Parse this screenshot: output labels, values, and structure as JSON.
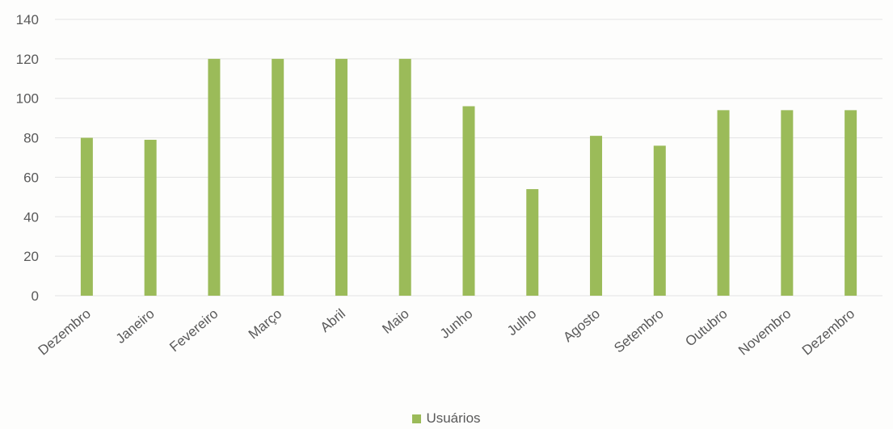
{
  "colors": {
    "bar": "#9bbb59",
    "grid": "#e3e3e3",
    "text": "#595959"
  },
  "chart_data": {
    "type": "bar",
    "categories": [
      "Dezembro",
      "Janeiro",
      "Fevereiro",
      "Março",
      "Abril",
      "Maio",
      "Junho",
      "Julho",
      "Agosto",
      "Setembro",
      "Outubro",
      "Novembro",
      "Dezembro"
    ],
    "series": [
      {
        "name": "Usuários",
        "values": [
          80,
          79,
          120,
          120,
          120,
          120,
          96,
          54,
          81,
          76,
          94,
          94,
          94
        ]
      }
    ],
    "title": "",
    "xlabel": "",
    "ylabel": "",
    "ylim": [
      0,
      140
    ],
    "yticks": [
      0,
      20,
      40,
      60,
      80,
      100,
      120,
      140
    ],
    "grid": true,
    "legend_position": "bottom"
  }
}
